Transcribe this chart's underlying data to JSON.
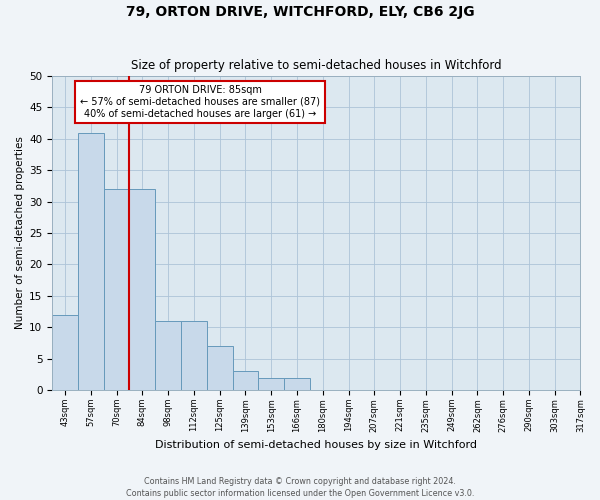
{
  "title": "79, ORTON DRIVE, WITCHFORD, ELY, CB6 2JG",
  "subtitle": "Size of property relative to semi-detached houses in Witchford",
  "xlabel": "Distribution of semi-detached houses by size in Witchford",
  "ylabel": "Number of semi-detached properties",
  "footer_line1": "Contains HM Land Registry data © Crown copyright and database right 2024.",
  "footer_line2": "Contains public sector information licensed under the Open Government Licence v3.0.",
  "bins": [
    "43sqm",
    "57sqm",
    "70sqm",
    "84sqm",
    "98sqm",
    "112sqm",
    "125sqm",
    "139sqm",
    "153sqm",
    "166sqm",
    "180sqm",
    "194sqm",
    "207sqm",
    "221sqm",
    "235sqm",
    "249sqm",
    "262sqm",
    "276sqm",
    "290sqm",
    "303sqm",
    "317sqm"
  ],
  "values": [
    12,
    41,
    32,
    32,
    11,
    11,
    7,
    3,
    2,
    2,
    0,
    0,
    0,
    0,
    0,
    0,
    0,
    0,
    0,
    0
  ],
  "bar_color": "#c8d9ea",
  "bar_edge_color": "#6699bb",
  "marker_line_color": "#cc0000",
  "marker_label": "79 ORTON DRIVE: 85sqm",
  "annotation_smaller": "← 57% of semi-detached houses are smaller (87)",
  "annotation_larger": "40% of semi-detached houses are larger (61) →",
  "annotation_box_color": "#ffffff",
  "annotation_box_edge": "#cc0000",
  "ylim": [
    0,
    50
  ],
  "yticks": [
    0,
    5,
    10,
    15,
    20,
    25,
    30,
    35,
    40,
    45,
    50
  ],
  "grid_color": "#adc4d8",
  "bg_color": "#dce8f0",
  "fig_bg_color": "#f0f4f8"
}
